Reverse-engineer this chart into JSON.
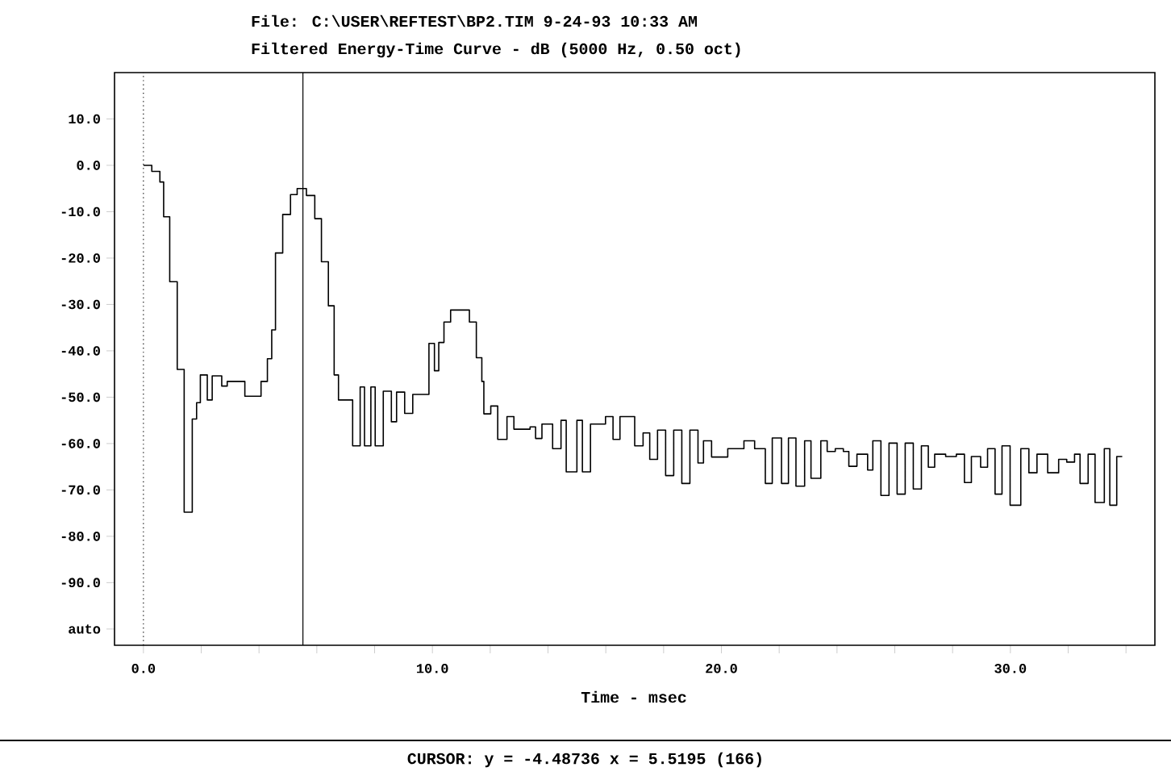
{
  "chart_data": {
    "type": "step",
    "title": "File: C:\\USER\\REFTEST\\BP2.TIM 9-24-93 10:33 AM",
    "subtitle": "Filtered Energy-Time Curve - dB (5000 Hz, 0.50 oct)",
    "xlabel": "Time - msec",
    "annotations": [
      "CURSOR: y = -4.48736 x = 5.5195 (166)"
    ],
    "xlim": [
      -1,
      35
    ],
    "ylim": [
      -103.5,
      20
    ],
    "xticks": [
      {
        "value": 0,
        "label": "0.0"
      },
      {
        "value": 2,
        "label": null
      },
      {
        "value": 4,
        "label": null
      },
      {
        "value": 6,
        "label": null
      },
      {
        "value": 8,
        "label": null
      },
      {
        "value": 10,
        "label": "10.0"
      },
      {
        "value": 12,
        "label": null
      },
      {
        "value": 14,
        "label": null
      },
      {
        "value": 16,
        "label": null
      },
      {
        "value": 18,
        "label": null
      },
      {
        "value": 20,
        "label": "20.0"
      },
      {
        "value": 22,
        "label": null
      },
      {
        "value": 24,
        "label": null
      },
      {
        "value": 26,
        "label": null
      },
      {
        "value": 28,
        "label": null
      },
      {
        "value": 30,
        "label": "30.0"
      },
      {
        "value": 32,
        "label": null
      },
      {
        "value": 34,
        "label": null
      }
    ],
    "yticks": [
      {
        "value": 10,
        "label": "10.0"
      },
      {
        "value": 0,
        "label": "0.0"
      },
      {
        "value": -10,
        "label": "-10.0"
      },
      {
        "value": -20,
        "label": "-20.0"
      },
      {
        "value": -30,
        "label": "-30.0"
      },
      {
        "value": -40,
        "label": "-40.0"
      },
      {
        "value": -50,
        "label": "-50.0"
      },
      {
        "value": -60,
        "label": "-60.0"
      },
      {
        "value": -70,
        "label": "-70.0"
      },
      {
        "value": -80,
        "label": "-80.0"
      },
      {
        "value": -90,
        "label": "-90.0"
      },
      {
        "value": -100,
        "label": "auto"
      }
    ],
    "ref_lines": [
      {
        "axis": "x",
        "value": 0,
        "line_style": "dotted",
        "color": "#000000"
      },
      {
        "axis": "x",
        "value": 5.5195,
        "line_style": "solid",
        "color": "#000000"
      }
    ],
    "marker": "none",
    "line_style": "solid",
    "series": [
      {
        "color": "#000000",
        "x": [
          0.0,
          0.29,
          0.57,
          0.7,
          0.91,
          1.17,
          1.41,
          1.69,
          1.84,
          1.97,
          2.21,
          2.38,
          2.71,
          2.9,
          3.51,
          4.07,
          4.29,
          4.44,
          4.57,
          4.82,
          5.09,
          5.32,
          5.64,
          5.93,
          6.16,
          6.4,
          6.6,
          6.75,
          7.24,
          7.5,
          7.65,
          7.87,
          8.02,
          8.3,
          8.58,
          8.76,
          9.04,
          9.32,
          9.88,
          10.07,
          10.22,
          10.4,
          10.63,
          11.28,
          11.52,
          11.71,
          11.78,
          12.02,
          12.26,
          12.58,
          12.82,
          13.38,
          13.57,
          13.79,
          14.16,
          14.45,
          14.63,
          15.0,
          15.19,
          15.47,
          15.99,
          16.25,
          16.49,
          17.0,
          17.29,
          17.52,
          17.79,
          18.07,
          18.35,
          18.63,
          18.91,
          19.19,
          19.38,
          19.66,
          20.22,
          20.78,
          21.15,
          21.52,
          21.76,
          22.08,
          22.32,
          22.58,
          22.88,
          23.1,
          23.44,
          23.66,
          23.94,
          24.22,
          24.41,
          24.69,
          25.06,
          25.24,
          25.52,
          25.8,
          26.08,
          26.36,
          26.64,
          26.92,
          27.16,
          27.38,
          27.76,
          28.13,
          28.41,
          28.65,
          28.97,
          29.21,
          29.47,
          29.71,
          29.99,
          30.36,
          30.64,
          30.92,
          31.29,
          31.67,
          31.95,
          32.22,
          32.41,
          32.69,
          32.93,
          33.25,
          33.44,
          33.68,
          33.87
        ],
        "values": [
          0,
          -1.3,
          -3.6,
          -11.1,
          -25.1,
          -44,
          -74.8,
          -54.7,
          -51.2,
          -45.2,
          -50.6,
          -45.4,
          -47.6,
          -46.6,
          -49.8,
          -46.6,
          -41.7,
          -35.5,
          -18.9,
          -10.6,
          -6.3,
          -5.0,
          -6.5,
          -11.5,
          -20.8,
          -30.3,
          -45.2,
          -50.6,
          -60.5,
          -47.8,
          -60.5,
          -47.8,
          -60.5,
          -48.7,
          -55.3,
          -48.9,
          -53.5,
          -49.4,
          -38.4,
          -44.3,
          -38.2,
          -33.8,
          -31.2,
          -33.8,
          -41.5,
          -46.6,
          -53.6,
          -51.9,
          -59.1,
          -54.2,
          -56.9,
          -56.4,
          -58.9,
          -55.8,
          -61.1,
          -55.0,
          -66.1,
          -55.0,
          -66.1,
          -55.8,
          -54.2,
          -59.1,
          -54.2,
          -60.5,
          -57.7,
          -63.4,
          -57.1,
          -66.9,
          -57.1,
          -68.6,
          -57.1,
          -64.2,
          -59.4,
          -62.9,
          -61.1,
          -59.4,
          -61.1,
          -68.6,
          -58.8,
          -68.6,
          -58.8,
          -69.2,
          -59.4,
          -67.5,
          -59.4,
          -61.7,
          -61.1,
          -61.7,
          -64.9,
          -62.3,
          -65.7,
          -59.4,
          -71.2,
          -59.9,
          -70.9,
          -59.9,
          -69.8,
          -60.5,
          -65.1,
          -62.3,
          -62.8,
          -62.3,
          -68.4,
          -62.8,
          -65.1,
          -61.1,
          -70.9,
          -60.5,
          -73.3,
          -61.1,
          -66.3,
          -62.3,
          -66.3,
          -63.4,
          -64.0,
          -62.3,
          -68.6,
          -62.3,
          -72.7,
          -61.1,
          -73.3,
          -62.8,
          -62.8
        ]
      }
    ]
  }
}
